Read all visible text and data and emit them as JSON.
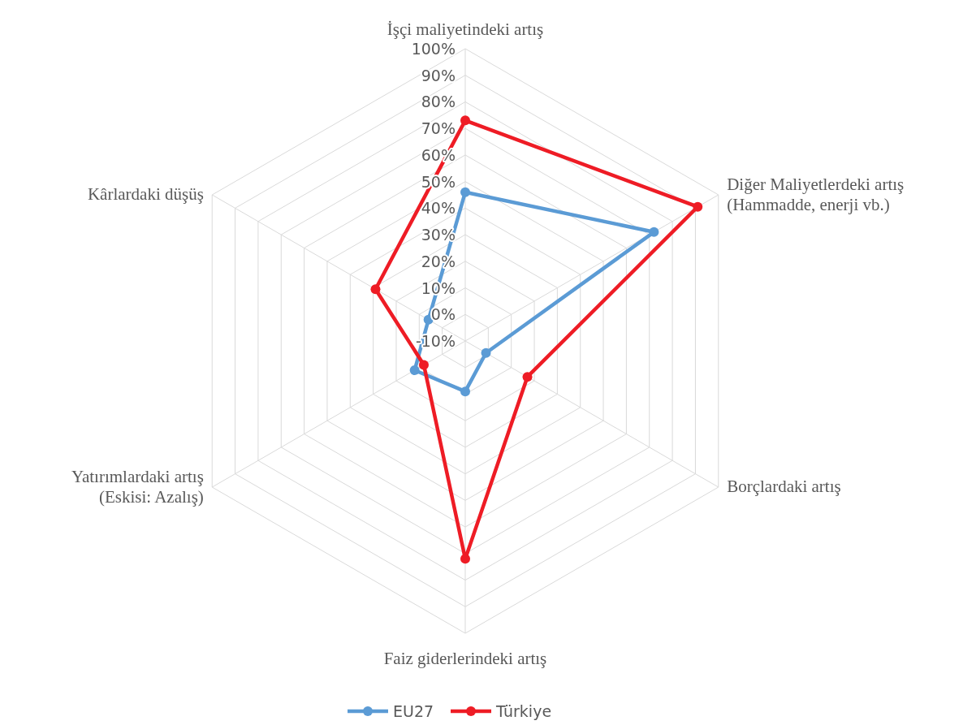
{
  "chart_data": {
    "type": "radar",
    "categories": [
      "İşçi maliyetindeki artış",
      "Diğer Maliyetlerdeki artış\n(Hammadde, enerji vb.)",
      "Borçlardaki artış",
      "Faiz giderlerindeki artış",
      "Yatırımlardaki artış\n(Eskisi: Azalış)",
      "Kârlardaki düşüş"
    ],
    "series": [
      {
        "name": "EU27",
        "color": "#5b9bd5",
        "values": [
          46,
          72,
          -1,
          9,
          12,
          6
        ]
      },
      {
        "name": "Türkiye",
        "color": "#ee1c25",
        "values": [
          73,
          91,
          17,
          72,
          8,
          29
        ]
      }
    ],
    "ylim": [
      -10,
      100
    ],
    "yticks": [
      {
        "value": -10,
        "label": "-10%"
      },
      {
        "value": 0,
        "label": "0%"
      },
      {
        "value": 10,
        "label": "10%"
      },
      {
        "value": 20,
        "label": "20%"
      },
      {
        "value": 30,
        "label": "30%"
      },
      {
        "value": 40,
        "label": "40%"
      },
      {
        "value": 50,
        "label": "50%"
      },
      {
        "value": 60,
        "label": "60%"
      },
      {
        "value": 70,
        "label": "70%"
      },
      {
        "value": 80,
        "label": "80%"
      },
      {
        "value": 90,
        "label": "90%"
      },
      {
        "value": 100,
        "label": "100%"
      }
    ],
    "grid": true,
    "legend": "bottom",
    "marker": "circle"
  }
}
